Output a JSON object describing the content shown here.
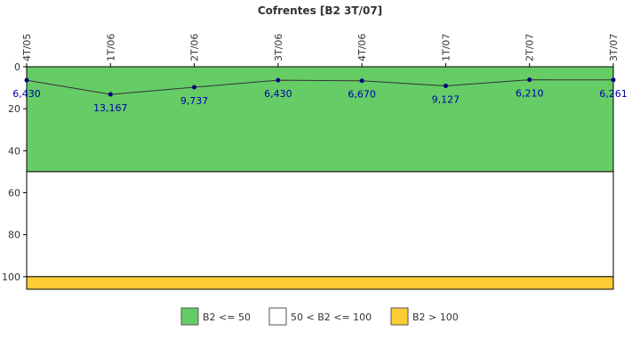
{
  "chart_data": {
    "type": "line",
    "title": "Cofrentes [B2 3T/07]",
    "categories": [
      "4T/05",
      "1T/06",
      "2T/06",
      "3T/06",
      "4T/06",
      "1T/07",
      "2T/07",
      "3T/07"
    ],
    "series": [
      {
        "values": [
          6.43,
          13.167,
          9.737,
          6.43,
          6.67,
          9.127,
          6.21,
          6.261
        ],
        "labels": [
          "6,430",
          "13,167",
          "9,737",
          "6,430",
          "6,670",
          "9,127",
          "6,210",
          "6,261"
        ],
        "color": "#000080"
      }
    ],
    "y_axis": {
      "reversed": true,
      "ylim": [
        0,
        106
      ],
      "ticks": [
        0,
        20,
        40,
        60,
        80,
        100
      ]
    },
    "bands": [
      {
        "from": 0,
        "to": 50,
        "color": "#66cc66",
        "label": "B2 <= 50"
      },
      {
        "from": 50,
        "to": 100,
        "color": "#ffffff",
        "label": "50 < B2 <= 100"
      },
      {
        "from": 100,
        "to": 106,
        "color": "#ffcc33",
        "label": "B2 > 100"
      }
    ],
    "legend_position": "bottom-center",
    "grid": false
  }
}
